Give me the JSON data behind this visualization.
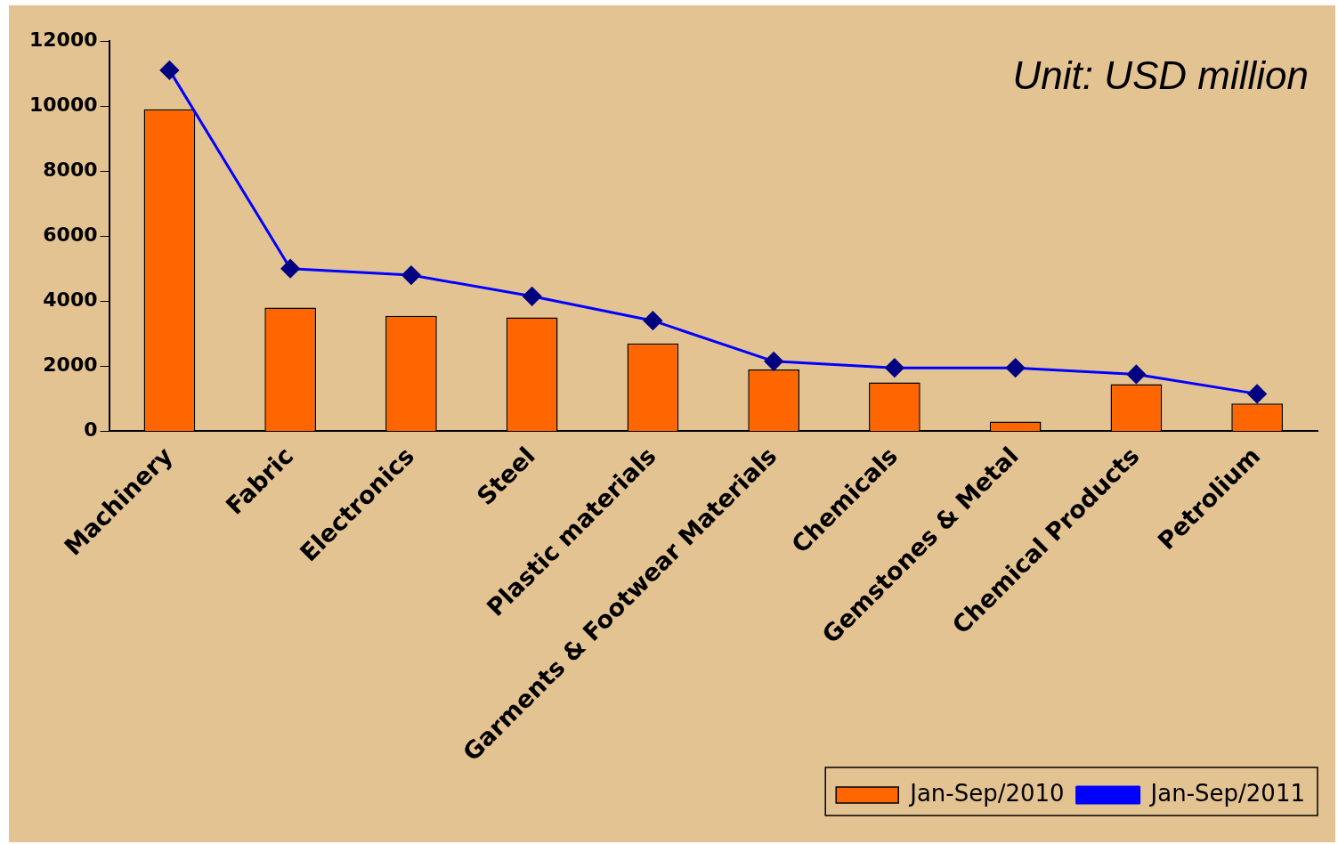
{
  "chart_data": {
    "type": "bar",
    "categories": [
      "Machinery",
      "Fabric",
      "Electronics",
      "Steel",
      "Plastic materials",
      "Garments & Footwear Materials",
      "Chemicals",
      "Gemstones & Metal",
      "Chemical Products",
      "Petrolium"
    ],
    "series": [
      {
        "name": "Jan-Sep/2010",
        "color": "#ff6600",
        "values": [
          9900,
          3800,
          3550,
          3500,
          2700,
          1900,
          1500,
          300,
          1450,
          850
        ]
      },
      {
        "name": "Jan-Sep/2011",
        "type": "line",
        "color": "#0000ff",
        "marker": "diamond",
        "values": [
          11100,
          5000,
          4800,
          4150,
          3400,
          2150,
          1950,
          1950,
          1750,
          1150
        ]
      }
    ],
    "ylim": [
      0,
      12000
    ],
    "yticks": [
      0,
      2000,
      4000,
      6000,
      8000,
      10000,
      12000
    ],
    "grid": false,
    "legend": "bottom right",
    "annotations": [
      "Unit: USD million"
    ]
  }
}
